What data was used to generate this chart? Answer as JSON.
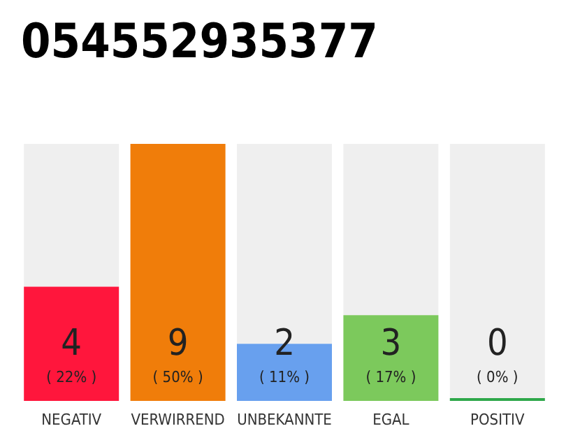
{
  "chart_data": {
    "type": "bar",
    "title": "054552935377",
    "stacked": true,
    "categories": [
      "NEGATIV",
      "VERWIRREND",
      "UNBEKANNTE",
      "EGAL",
      "POSITIV"
    ],
    "series": [
      {
        "colors": [
          "#ff163c",
          "#f07d0a",
          "#68a0ee",
          "#7cc95c",
          "#2ea84a"
        ],
        "values": [
          4,
          9,
          2,
          3,
          0
        ],
        "value_labels": [
          "4\n( 22% )",
          "9\n( 50% )",
          "2\n( 11% )",
          "3\n( 17% )",
          "0\n( 0% )"
        ]
      },
      {
        "color": "#efefef",
        "values": [
          5,
          0,
          7,
          6,
          9
        ]
      }
    ],
    "tick_labels": "x"
  }
}
